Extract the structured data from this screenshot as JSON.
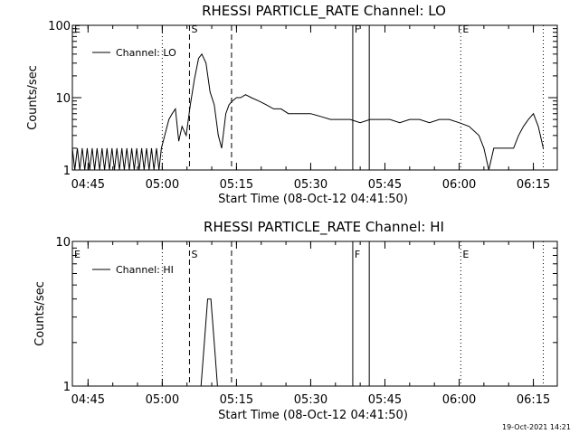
{
  "footer": {
    "timestamp": "19-Oct-2021 14:21"
  },
  "chart_data": [
    {
      "type": "line",
      "title": "RHESSI PARTICLE_RATE Channel: LO",
      "xlabel": "Start Time (08-Oct-12 04:41:50)",
      "ylabel": "Counts/sec",
      "yscale": "log",
      "ylim": [
        1,
        100
      ],
      "y_ticks": [
        "1",
        "10",
        "100"
      ],
      "x_ticks": [
        "04:45",
        "05:00",
        "05:15",
        "05:30",
        "05:45",
        "06:00",
        "06:15"
      ],
      "xlim": [
        "04:41:50",
        "06:19:50"
      ],
      "legend": "top-left",
      "markers": [
        {
          "label": "E",
          "time": "04:41:50",
          "style": "dotted"
        },
        {
          "label": "",
          "time": "05:00:00",
          "style": "dotted"
        },
        {
          "label": "S",
          "time": "05:05:30",
          "style": "dashed"
        },
        {
          "label": "",
          "time": "05:14:00",
          "style": "dashed"
        },
        {
          "label": "F",
          "time": "05:38:30",
          "style": "solid"
        },
        {
          "label": "",
          "time": "05:41:50",
          "style": "solid"
        },
        {
          "label": "E",
          "time": "06:00:20",
          "style": "dotted"
        },
        {
          "label": "",
          "time": "06:17:00",
          "style": "dotted"
        }
      ],
      "series": [
        {
          "name": "Channel: LO",
          "x": [
            "04:41:50",
            "04:42:20",
            "04:42:50",
            "04:43:20",
            "04:43:50",
            "04:44:20",
            "04:44:50",
            "04:45:20",
            "04:45:50",
            "04:46:20",
            "04:46:50",
            "04:47:20",
            "04:47:50",
            "04:48:20",
            "04:48:50",
            "04:49:20",
            "04:49:50",
            "04:50:20",
            "04:50:50",
            "04:51:20",
            "04:51:50",
            "04:52:20",
            "04:52:50",
            "04:53:20",
            "04:53:50",
            "04:54:20",
            "04:54:50",
            "04:55:20",
            "04:55:50",
            "04:56:20",
            "04:56:50",
            "04:57:20",
            "04:57:50",
            "04:58:20",
            "04:58:50",
            "04:59:20",
            "04:59:50",
            "05:00:30",
            "05:01:20",
            "05:02:00",
            "05:02:40",
            "05:03:20",
            "05:04:00",
            "05:04:50",
            "05:05:40",
            "05:06:30",
            "05:07:20",
            "05:08:00",
            "05:08:50",
            "05:09:40",
            "05:10:30",
            "05:11:20",
            "05:12:00",
            "05:12:50",
            "05:13:30",
            "05:14:10",
            "05:15:00",
            "05:15:50",
            "05:16:50",
            "05:18:00",
            "05:19:30",
            "05:21:00",
            "05:22:30",
            "05:24:00",
            "05:25:30",
            "05:27:00",
            "05:28:30",
            "05:30:00",
            "05:32:00",
            "05:34:00",
            "05:36:00",
            "05:38:00",
            "05:40:00",
            "05:42:00",
            "05:44:00",
            "05:46:00",
            "05:48:00",
            "05:50:00",
            "05:52:00",
            "05:54:00",
            "05:56:00",
            "05:58:00",
            "06:00:00",
            "06:02:00",
            "06:04:00",
            "06:05:00",
            "06:06:00",
            "06:07:00",
            "06:08:00",
            "06:09:00",
            "06:10:00",
            "06:11:00",
            "06:12:00",
            "06:13:00",
            "06:14:00",
            "06:15:00",
            "06:16:00",
            "06:17:00"
          ],
          "y": [
            2,
            1,
            2,
            1,
            2,
            1,
            2,
            1,
            2,
            1,
            2,
            1,
            2,
            1,
            2,
            1,
            2,
            1,
            2,
            1,
            2,
            1,
            2,
            1,
            2,
            1,
            2,
            1,
            2,
            1,
            2,
            1,
            2,
            1,
            2,
            1,
            2,
            3,
            5,
            6,
            7,
            2.5,
            4,
            3,
            8,
            18,
            35,
            40,
            30,
            12,
            8,
            3,
            2,
            6,
            8,
            9,
            10,
            10,
            11,
            10,
            9,
            8,
            7,
            7,
            6,
            6,
            6,
            6,
            5.5,
            5,
            5,
            5,
            4.5,
            5,
            5,
            5,
            4.5,
            5,
            5,
            4.5,
            5,
            5,
            4.5,
            4,
            3,
            2,
            1,
            2,
            2,
            2,
            2,
            2,
            3,
            4,
            5,
            6,
            4,
            2
          ]
        }
      ]
    },
    {
      "type": "line",
      "title": "RHESSI PARTICLE_RATE Channel: HI",
      "xlabel": "Start Time (08-Oct-12 04:41:50)",
      "ylabel": "Counts/sec",
      "yscale": "log",
      "ylim": [
        1,
        10
      ],
      "y_ticks": [
        "1",
        "10"
      ],
      "x_ticks": [
        "04:45",
        "05:00",
        "05:15",
        "05:30",
        "05:45",
        "06:00",
        "06:15"
      ],
      "xlim": [
        "04:41:50",
        "06:19:50"
      ],
      "legend": "top-left",
      "markers": [
        {
          "label": "E",
          "time": "04:41:50",
          "style": "dotted"
        },
        {
          "label": "",
          "time": "05:00:00",
          "style": "dotted"
        },
        {
          "label": "S",
          "time": "05:05:30",
          "style": "dashed"
        },
        {
          "label": "",
          "time": "05:14:00",
          "style": "dashed"
        },
        {
          "label": "F",
          "time": "05:38:30",
          "style": "solid"
        },
        {
          "label": "",
          "time": "05:41:50",
          "style": "solid"
        },
        {
          "label": "E",
          "time": "06:00:20",
          "style": "dotted"
        },
        {
          "label": "",
          "time": "06:17:00",
          "style": "dotted"
        }
      ],
      "series": [
        {
          "name": "Channel: HI",
          "x": [
            "05:07:50",
            "05:08:30",
            "05:09:10",
            "05:09:50",
            "05:10:30",
            "05:11:10"
          ],
          "y": [
            1,
            2,
            4,
            4,
            2,
            1
          ]
        }
      ]
    }
  ]
}
